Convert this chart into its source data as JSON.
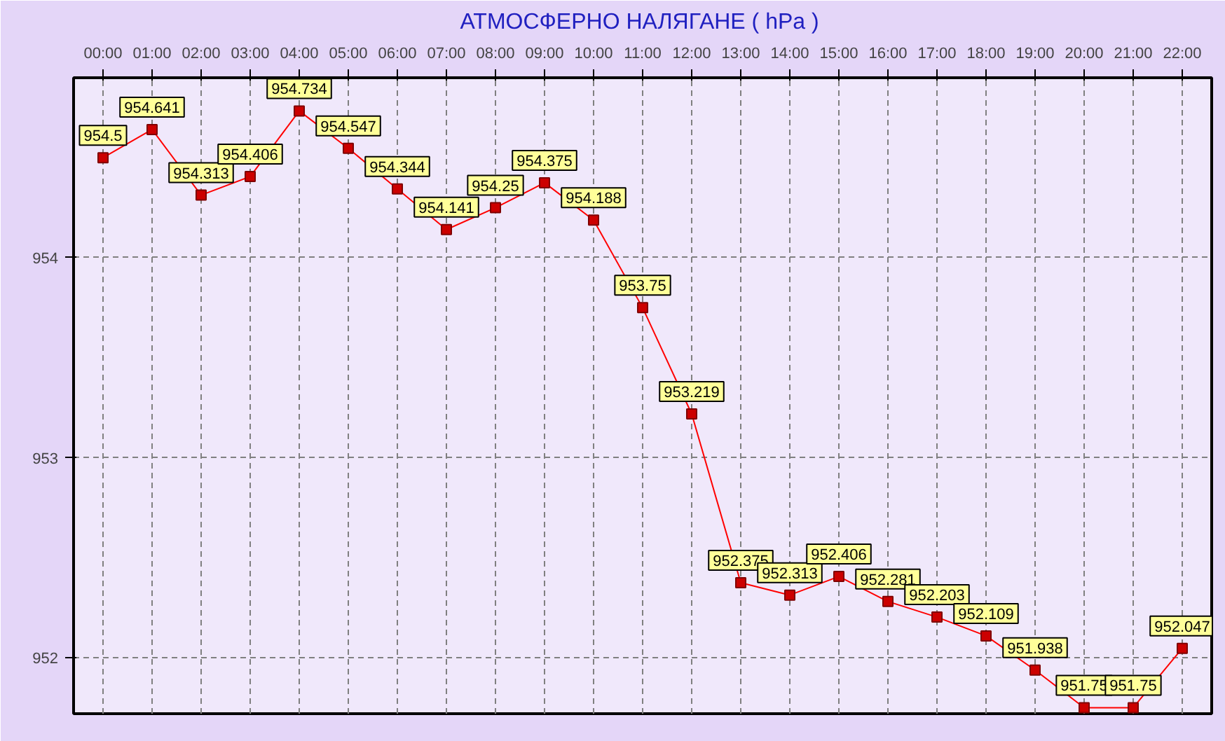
{
  "chart_data": {
    "type": "line",
    "title": "АТМОСФЕРНО НАЛЯГАНЕ  ( hPa )",
    "categories": [
      "00:00",
      "01:00",
      "02:00",
      "03:00",
      "04:00",
      "05:00",
      "06:00",
      "07:00",
      "08:00",
      "09:00",
      "10:00",
      "11:00",
      "12:00",
      "13:00",
      "14:00",
      "15:00",
      "16:00",
      "17:00",
      "18:00",
      "19:00",
      "20:00",
      "21:00",
      "22:00"
    ],
    "series": [
      {
        "color": "#ff0000",
        "values": [
          954.5,
          954.641,
          954.313,
          954.406,
          954.734,
          954.547,
          954.344,
          954.141,
          954.25,
          954.375,
          954.188,
          953.75,
          953.219,
          952.375,
          952.313,
          952.406,
          952.281,
          952.203,
          952.109,
          951.938,
          951.75,
          951.75,
          952.047
        ]
      }
    ],
    "ylim": [
      951.72,
      954.9
    ],
    "yticks": [
      952,
      953,
      954
    ],
    "grid": true,
    "marker": "square",
    "line_style": "solid",
    "data_labels": true
  }
}
